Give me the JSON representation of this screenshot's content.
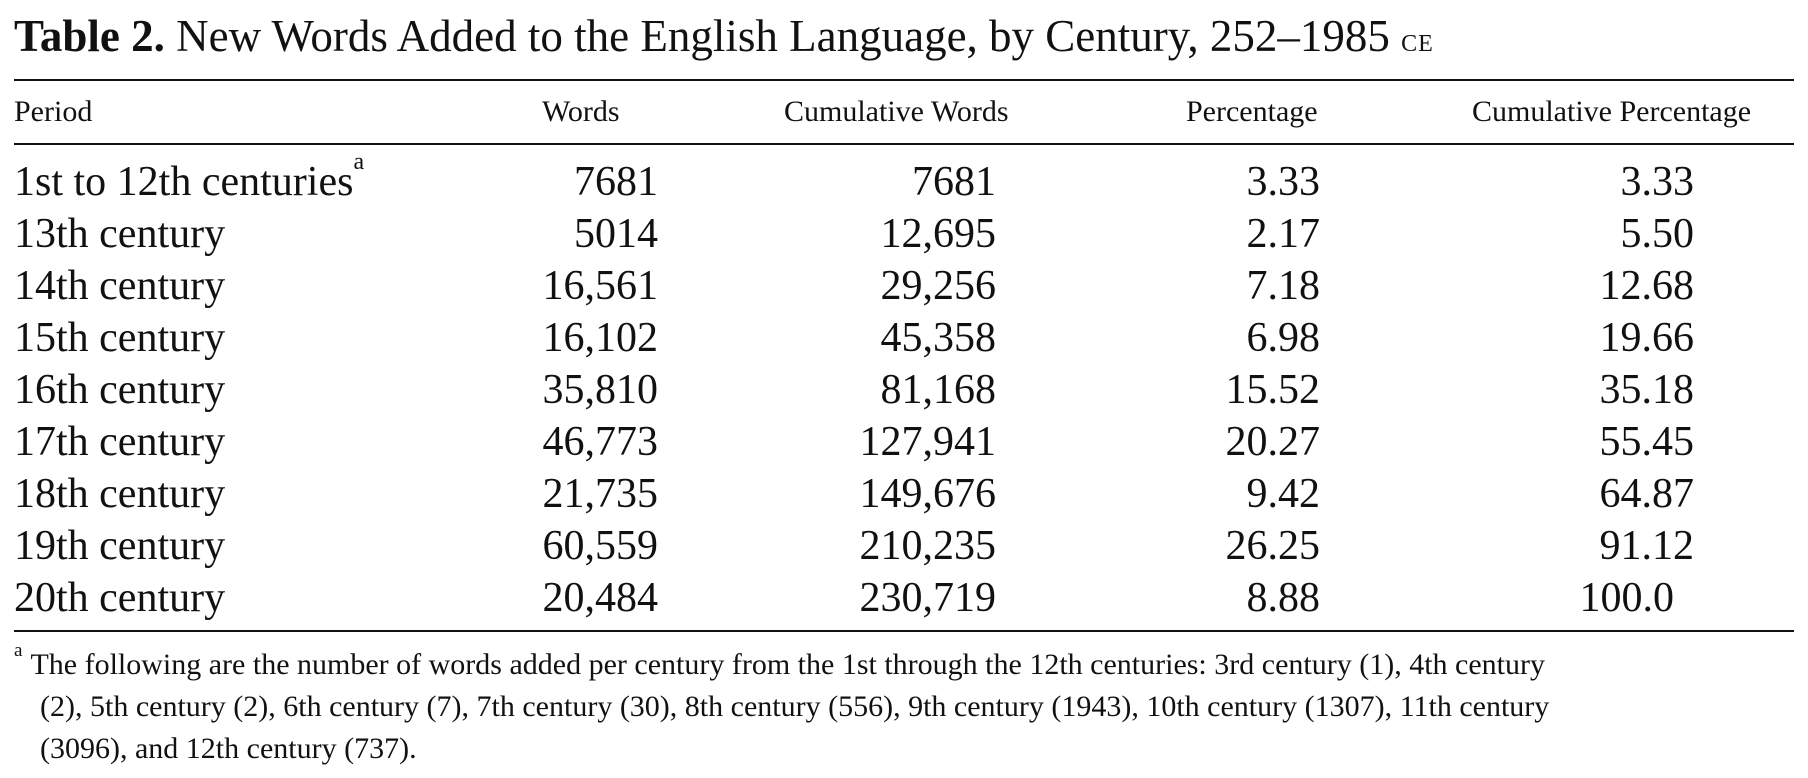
{
  "caption": {
    "label": "Table 2.",
    "title": "New Words Added to the English Language, by Century, 252–1985",
    "era": "CE"
  },
  "columns": {
    "period": "Period",
    "words": "Words",
    "cumulative_words": "Cumulative Words",
    "percentage": "Percentage",
    "cumulative_percentage": "Cumulative Percentage"
  },
  "rows": [
    {
      "period": "1st to 12th centuries",
      "footnote_mark": "a",
      "words": "7681",
      "cumulative_words": "7681",
      "percentage": "3.33",
      "cumulative_percentage": "3.33"
    },
    {
      "period": "13th century",
      "words": "5014",
      "cumulative_words": "12,695",
      "percentage": "2.17",
      "cumulative_percentage": "5.50"
    },
    {
      "period": "14th century",
      "words": "16,561",
      "cumulative_words": "29,256",
      "percentage": "7.18",
      "cumulative_percentage": "12.68"
    },
    {
      "period": "15th century",
      "words": "16,102",
      "cumulative_words": "45,358",
      "percentage": "6.98",
      "cumulative_percentage": "19.66"
    },
    {
      "period": "16th century",
      "words": "35,810",
      "cumulative_words": "81,168",
      "percentage": "15.52",
      "cumulative_percentage": "35.18"
    },
    {
      "period": "17th century",
      "words": "46,773",
      "cumulative_words": "127,941",
      "percentage": "20.27",
      "cumulative_percentage": "55.45"
    },
    {
      "period": "18th century",
      "words": "21,735",
      "cumulative_words": "149,676",
      "percentage": "9.42",
      "cumulative_percentage": "64.87"
    },
    {
      "period": "19th century",
      "words": "60,559",
      "cumulative_words": "210,235",
      "percentage": "26.25",
      "cumulative_percentage": "91.12"
    },
    {
      "period": "20th century",
      "words": "20,484",
      "cumulative_words": "230,719",
      "percentage": "8.88",
      "cumulative_percentage": "100.0"
    }
  ],
  "footnote": {
    "mark": "a",
    "lines": [
      "The following are the number of words added per century from the 1st through the 12th centuries: 3rd century (1), 4th century",
      "(2), 5th century (2), 6th century (7), 7th century (30), 8th century (556), 9th century (1943), 10th century (1307), 11th century",
      "(3096), and 12th century (737)."
    ]
  }
}
